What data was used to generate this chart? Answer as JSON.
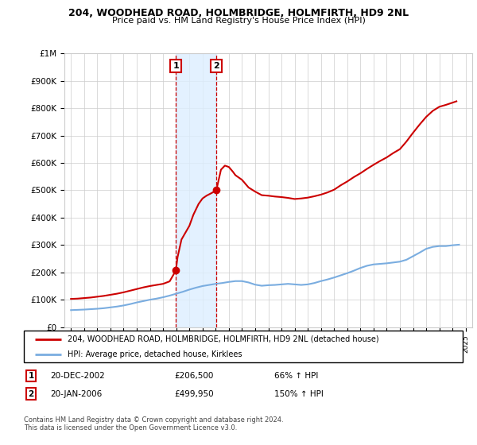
{
  "title": "204, WOODHEAD ROAD, HOLMBRIDGE, HOLMFIRTH, HD9 2NL",
  "subtitle": "Price paid vs. HM Land Registry's House Price Index (HPI)",
  "ylim": [
    0,
    1000000
  ],
  "yticks": [
    0,
    100000,
    200000,
    300000,
    400000,
    500000,
    600000,
    700000,
    800000,
    900000,
    1000000
  ],
  "ytick_labels": [
    "£0",
    "£100K",
    "£200K",
    "£300K",
    "£400K",
    "£500K",
    "£600K",
    "£700K",
    "£800K",
    "£900K",
    "£1M"
  ],
  "xlim_start": 1994.5,
  "xlim_end": 2025.5,
  "xticks": [
    1995,
    1996,
    1997,
    1998,
    1999,
    2000,
    2001,
    2002,
    2003,
    2004,
    2005,
    2006,
    2007,
    2008,
    2009,
    2010,
    2011,
    2012,
    2013,
    2014,
    2015,
    2016,
    2017,
    2018,
    2019,
    2020,
    2021,
    2022,
    2023,
    2024,
    2025
  ],
  "sale1_x": 2002.97,
  "sale1_y": 206500,
  "sale1_label": "1",
  "sale1_date": "20-DEC-2002",
  "sale1_price": "£206,500",
  "sale1_hpi": "66% ↑ HPI",
  "sale2_x": 2006.05,
  "sale2_y": 499950,
  "sale2_label": "2",
  "sale2_date": "20-JAN-2006",
  "sale2_price": "£499,950",
  "sale2_hpi": "150% ↑ HPI",
  "property_color": "#cc0000",
  "hpi_color": "#7aade0",
  "vline_color": "#cc0000",
  "shade_color": "#ddeeff",
  "background_color": "#ffffff",
  "legend_line1": "204, WOODHEAD ROAD, HOLMBRIDGE, HOLMFIRTH, HD9 2NL (detached house)",
  "legend_line2": "HPI: Average price, detached house, Kirklees",
  "footer": "Contains HM Land Registry data © Crown copyright and database right 2024.\nThis data is licensed under the Open Government Licence v3.0.",
  "hpi_data_x": [
    1995,
    1995.5,
    1996,
    1996.5,
    1997,
    1997.5,
    1998,
    1998.5,
    1999,
    1999.5,
    2000,
    2000.5,
    2001,
    2001.5,
    2002,
    2002.5,
    2003,
    2003.5,
    2004,
    2004.5,
    2005,
    2005.5,
    2006,
    2006.5,
    2007,
    2007.5,
    2008,
    2008.5,
    2009,
    2009.5,
    2010,
    2010.5,
    2011,
    2011.5,
    2012,
    2012.5,
    2013,
    2013.5,
    2014,
    2014.5,
    2015,
    2015.5,
    2016,
    2016.5,
    2017,
    2017.5,
    2018,
    2018.5,
    2019,
    2019.5,
    2020,
    2020.5,
    2021,
    2021.5,
    2022,
    2022.5,
    2023,
    2023.5,
    2024,
    2024.5
  ],
  "hpi_data_y": [
    62000,
    63000,
    64000,
    65500,
    67000,
    69000,
    72000,
    75000,
    79000,
    84000,
    90000,
    95000,
    100000,
    104000,
    109000,
    115000,
    122000,
    129000,
    137000,
    144000,
    150000,
    154000,
    158000,
    161000,
    165000,
    168000,
    168000,
    163000,
    155000,
    151000,
    153000,
    154000,
    156000,
    158000,
    156000,
    154000,
    156000,
    161000,
    168000,
    174000,
    181000,
    189000,
    197000,
    206000,
    216000,
    224000,
    229000,
    231000,
    233000,
    236000,
    239000,
    246000,
    259000,
    272000,
    286000,
    293000,
    296000,
    296000,
    299000,
    301000
  ],
  "prop_data_x": [
    1995,
    1995.5,
    1996,
    1996.5,
    1997,
    1997.5,
    1998,
    1998.5,
    1999,
    1999.5,
    2000,
    2000.5,
    2001,
    2001.5,
    2002,
    2002.5,
    2002.97,
    2003.1,
    2003.4,
    2004,
    2004.3,
    2004.7,
    2005,
    2005.3,
    2005.7,
    2006.05,
    2006.4,
    2006.7,
    2007,
    2007.3,
    2007.5,
    2008,
    2008.5,
    2009,
    2009.5,
    2010,
    2010.5,
    2011,
    2011.5,
    2012,
    2012.5,
    2013,
    2013.5,
    2014,
    2014.5,
    2015,
    2015.5,
    2016,
    2016.5,
    2017,
    2017.5,
    2018,
    2018.5,
    2019,
    2019.5,
    2020,
    2020.5,
    2021,
    2021.5,
    2022,
    2022.5,
    2023,
    2023.5,
    2024,
    2024.3
  ],
  "prop_data_y": [
    103000,
    104000,
    106000,
    108000,
    111000,
    114000,
    118000,
    122000,
    127000,
    133000,
    139000,
    145000,
    150000,
    154000,
    158000,
    167000,
    206500,
    255000,
    320000,
    370000,
    410000,
    450000,
    470000,
    480000,
    490000,
    499950,
    575000,
    590000,
    585000,
    568000,
    555000,
    538000,
    510000,
    495000,
    482000,
    480000,
    477000,
    475000,
    472000,
    468000,
    470000,
    473000,
    478000,
    484000,
    492000,
    502000,
    518000,
    532000,
    548000,
    562000,
    578000,
    593000,
    607000,
    620000,
    636000,
    650000,
    678000,
    710000,
    740000,
    768000,
    790000,
    805000,
    812000,
    820000,
    825000
  ]
}
